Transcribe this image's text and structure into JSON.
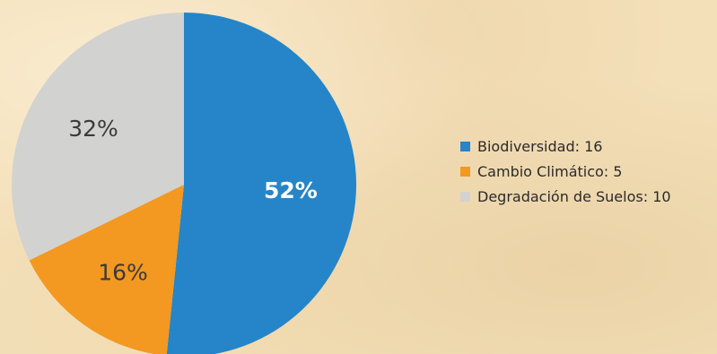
{
  "chart_data": {
    "type": "pie",
    "categories": [
      "Biodiversidad",
      "Cambio Climático",
      "Degradación de Suelos"
    ],
    "values": [
      16,
      5,
      10
    ],
    "percent_labels": [
      "52%",
      "16%",
      "32%"
    ],
    "legend_labels": [
      "Biodiversidad: 16",
      "Cambio Climático: 5",
      "Degradación de Suelos: 10"
    ],
    "colors": [
      "#2585c8",
      "#f39821",
      "#d2d2d0"
    ],
    "label_colors": [
      "#ffffff",
      "#3a3a3a",
      "#3a3a3a"
    ],
    "legend_placement": "right"
  }
}
